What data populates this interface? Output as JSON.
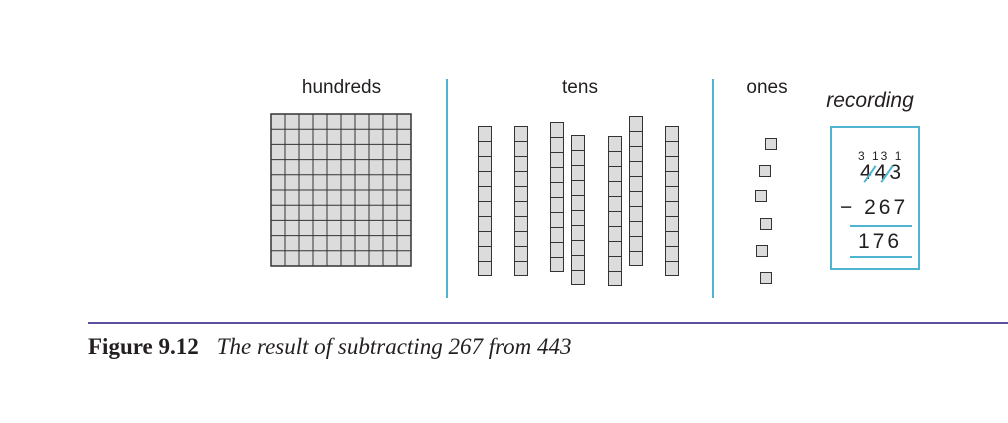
{
  "headers": {
    "hundreds": "hundreds",
    "tens": "tens",
    "ones": "ones",
    "recording": "recording"
  },
  "blocks": {
    "hundreds_flats": 1,
    "flat_grid": 10,
    "tens_rods": 7,
    "ones_units": 6
  },
  "recording": {
    "regroup_digits": "3 13 1",
    "top_number": "443",
    "subtrahend_row": "− 267",
    "result": "176"
  },
  "caption": {
    "label": "Figure 9.12",
    "title": "The result of subtracting 267 from 443"
  },
  "colors": {
    "divider": "#4fb4cf",
    "block_fill": "#dcdcdc",
    "rule": "#5b4f9e"
  }
}
